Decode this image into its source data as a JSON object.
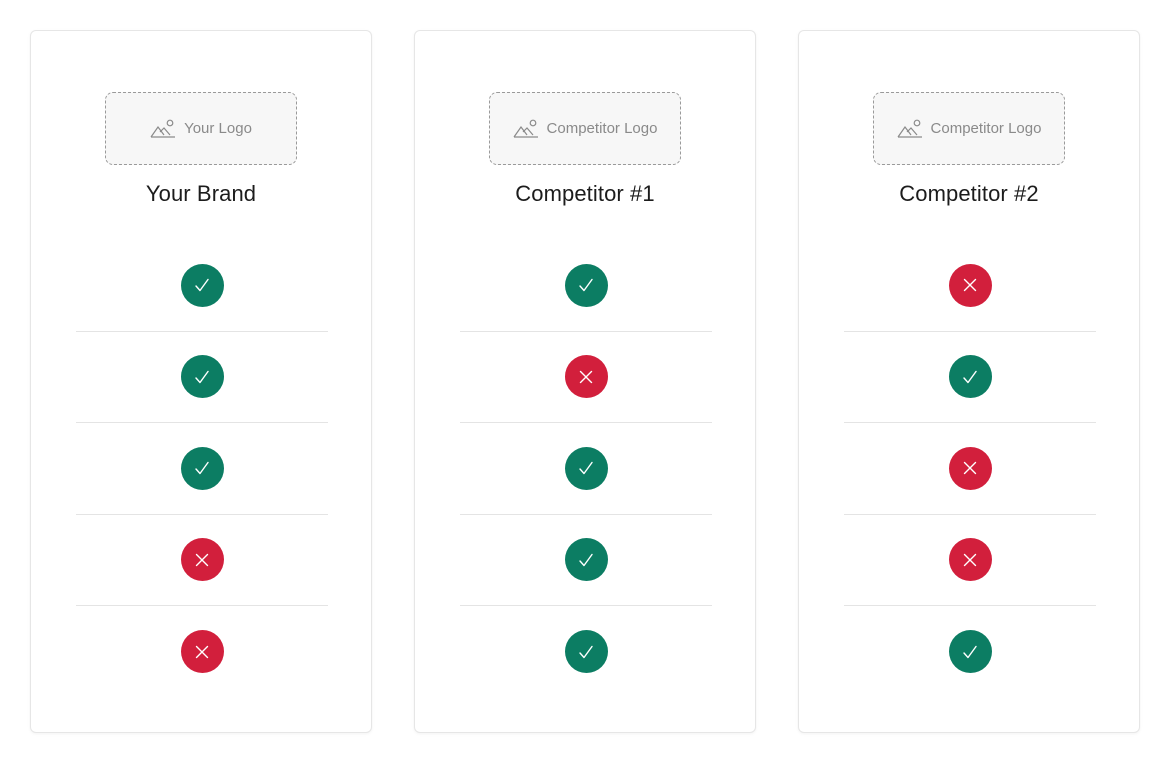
{
  "colors": {
    "check": "#0c7d63",
    "cross": "#d21f3c",
    "icon_stroke": "#ffffff"
  },
  "columns": [
    {
      "logo_icon": "image-placeholder-icon",
      "logo_label": "Your Logo",
      "title": "Your Brand",
      "features": [
        true,
        true,
        true,
        false,
        false
      ]
    },
    {
      "logo_icon": "image-placeholder-icon",
      "logo_label": "Competitor Logo",
      "title": "Competitor #1",
      "features": [
        true,
        false,
        true,
        true,
        true
      ]
    },
    {
      "logo_icon": "image-placeholder-icon",
      "logo_label": "Competitor Logo",
      "title": "Competitor #2",
      "features": [
        false,
        true,
        false,
        false,
        true
      ]
    }
  ]
}
